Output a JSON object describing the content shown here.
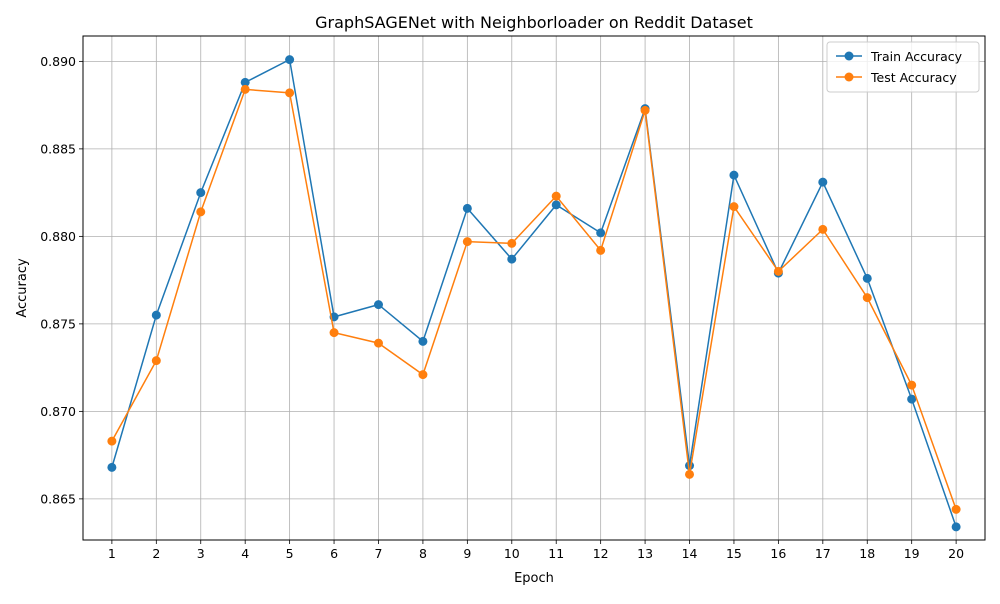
{
  "chart_data": {
    "type": "line",
    "title": "GraphSAGENet with Neighborloader on Reddit Dataset",
    "xlabel": "Epoch",
    "ylabel": "Accuracy",
    "x": [
      1,
      2,
      3,
      4,
      5,
      6,
      7,
      8,
      9,
      10,
      11,
      12,
      13,
      14,
      15,
      16,
      17,
      18,
      19,
      20
    ],
    "xticks": [
      "1",
      "2",
      "3",
      "4",
      "5",
      "6",
      "7",
      "8",
      "9",
      "10",
      "11",
      "12",
      "13",
      "14",
      "15",
      "16",
      "17",
      "18",
      "19",
      "20"
    ],
    "yticks": [
      "0.865",
      "0.870",
      "0.875",
      "0.880",
      "0.885",
      "0.890"
    ],
    "ytick_values": [
      0.865,
      0.87,
      0.875,
      0.88,
      0.885,
      0.89
    ],
    "xlim": [
      0.35,
      20.65
    ],
    "ylim": [
      0.86265,
      0.89145
    ],
    "grid": true,
    "legend_position": "top-right",
    "series": [
      {
        "name": "Train Accuracy",
        "color": "#1f77b4",
        "values": [
          0.8668,
          0.8755,
          0.8825,
          0.8888,
          0.8901,
          0.8754,
          0.8761,
          0.874,
          0.8816,
          0.8787,
          0.8818,
          0.8802,
          0.8873,
          0.8669,
          0.8835,
          0.8779,
          0.8831,
          0.8776,
          0.8707,
          0.8634
        ]
      },
      {
        "name": "Test Accuracy",
        "color": "#ff7f0e",
        "values": [
          0.8683,
          0.8729,
          0.8814,
          0.8884,
          0.8882,
          0.8745,
          0.8739,
          0.8721,
          0.8797,
          0.8796,
          0.8823,
          0.8792,
          0.8872,
          0.8664,
          0.8817,
          0.878,
          0.8804,
          0.8765,
          0.8715,
          0.8644
        ]
      }
    ]
  }
}
